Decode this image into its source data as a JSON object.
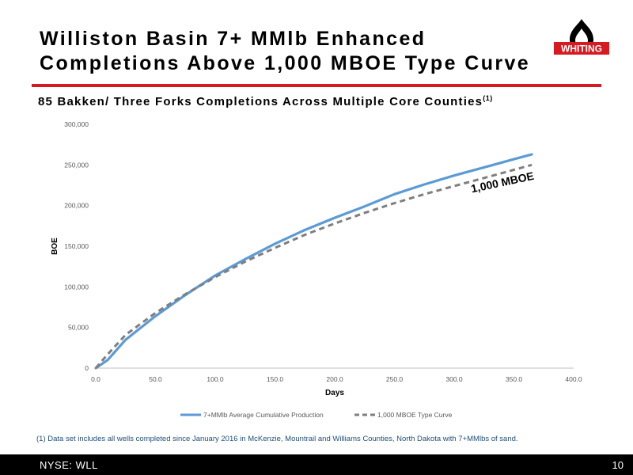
{
  "header": {
    "title_line1": "Williston Basin 7+ MMlb Enhanced",
    "title_line2": "Completions Above 1,000 MBOE Type Curve",
    "logo_text": "WHITING"
  },
  "subtitle": {
    "text": "85 Bakken/ Three Forks Completions Across Multiple Core Counties",
    "superscript": "(1)"
  },
  "chart_data": {
    "type": "line",
    "title": "",
    "xlabel": "Days",
    "ylabel": "BOE",
    "xlim": [
      0,
      400
    ],
    "ylim": [
      0,
      300000
    ],
    "x_ticks": [
      0,
      50,
      100,
      150,
      200,
      250,
      300,
      350,
      400
    ],
    "x_tick_labels": [
      "0.0",
      "50.0",
      "100.0",
      "150.0",
      "200.0",
      "250.0",
      "300.0",
      "350.0",
      "400.0"
    ],
    "y_ticks": [
      0,
      50000,
      100000,
      150000,
      200000,
      250000,
      300000
    ],
    "y_tick_labels": [
      "0",
      "50,000",
      "100,000",
      "150,000",
      "200,000",
      "250,000",
      "300,000"
    ],
    "grid": false,
    "legend_position": "bottom",
    "annotation": "1,000 MBOE",
    "series": [
      {
        "name": "7+MMlb Average Cumulative Production",
        "color": "#5b9bd5",
        "style": "solid",
        "x": [
          0,
          10,
          25,
          50,
          75,
          100,
          125,
          150,
          175,
          200,
          225,
          250,
          275,
          300,
          325,
          350,
          365
        ],
        "y": [
          0,
          10000,
          35000,
          64000,
          90000,
          114000,
          134000,
          153000,
          170000,
          185000,
          199000,
          214000,
          226000,
          237000,
          247000,
          257000,
          263000
        ]
      },
      {
        "name": "1,000 MBOE Type Curve",
        "color": "#7f7f7f",
        "style": "dashed",
        "x": [
          0,
          10,
          25,
          50,
          75,
          100,
          125,
          150,
          175,
          200,
          225,
          250,
          275,
          300,
          325,
          350,
          365
        ],
        "y": [
          0,
          17000,
          41000,
          68000,
          91000,
          112000,
          131000,
          148000,
          164000,
          178000,
          191000,
          203000,
          214000,
          224000,
          234000,
          244000,
          250000
        ]
      }
    ]
  },
  "footnote": "(1) Data set includes all wells completed since January 2016 in McKenzie, Mountrail and Williams Counties, North Dakota with 7+MMlbs of sand.",
  "footer": {
    "ticker": "NYSE:  WLL",
    "page_number": "10"
  },
  "colors": {
    "accent_red": "#d71920",
    "footnote_blue": "#1f4e79"
  }
}
